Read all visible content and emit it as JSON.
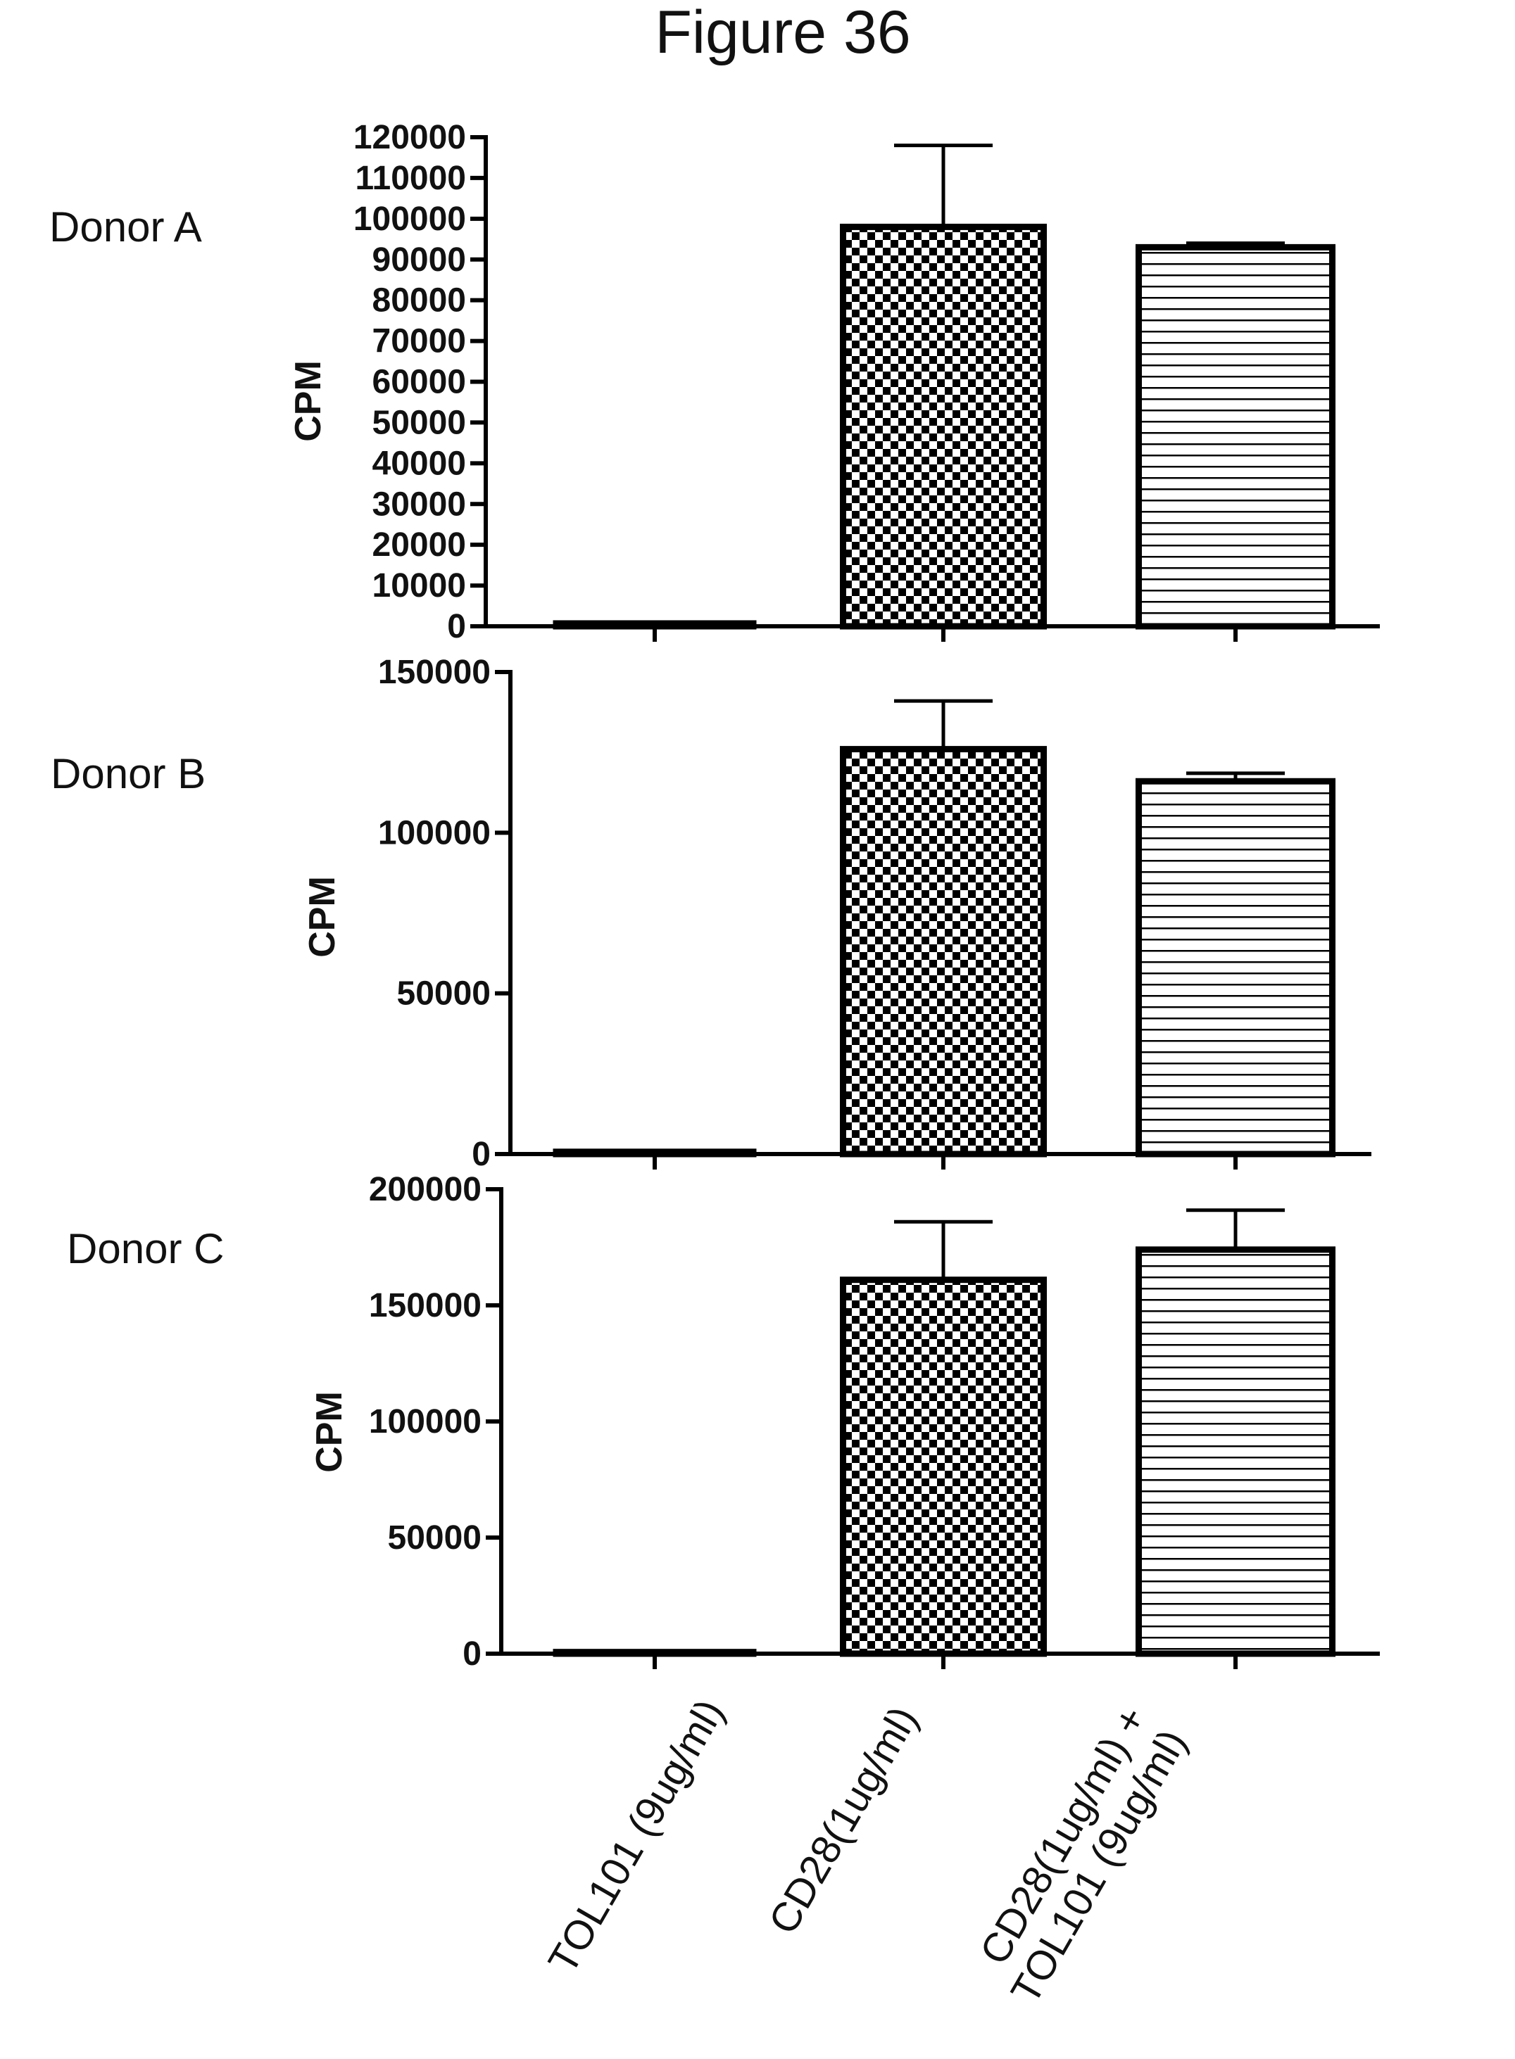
{
  "figure_title": "Figure 36",
  "chart_data": [
    {
      "type": "bar",
      "panel_label": "Donor A",
      "ylabel": "CPM",
      "ylim": [
        0,
        120000
      ],
      "yticks": [
        0,
        10000,
        20000,
        30000,
        40000,
        50000,
        60000,
        70000,
        80000,
        90000,
        100000,
        110000,
        120000
      ],
      "categories": [
        "TOL101 (9ug/ml)",
        "CD28(1ug/ml)",
        "CD28(1ug/ml) + TOL101 (9ug/ml)"
      ],
      "values": [
        700,
        98000,
        93000
      ],
      "error": [
        0,
        20000,
        1000
      ],
      "patterns": [
        "none",
        "checker",
        "hlines"
      ]
    },
    {
      "type": "bar",
      "panel_label": "Donor B",
      "ylabel": "CPM",
      "ylim": [
        0,
        150000
      ],
      "yticks": [
        0,
        50000,
        100000,
        150000
      ],
      "categories": [
        "TOL101 (9ug/ml)",
        "CD28(1ug/ml)",
        "CD28(1ug/ml) + TOL101 (9ug/ml)"
      ],
      "values": [
        700,
        126000,
        116000
      ],
      "error": [
        0,
        15000,
        2500
      ],
      "patterns": [
        "none",
        "checker",
        "hlines"
      ]
    },
    {
      "type": "bar",
      "panel_label": "Donor C",
      "ylabel": "CPM",
      "ylim": [
        0,
        200000
      ],
      "yticks": [
        0,
        50000,
        100000,
        150000,
        200000
      ],
      "categories": [
        "TOL101 (9ug/ml)",
        "CD28(1ug/ml)",
        "CD28(1ug/ml) + TOL101 (9ug/ml)"
      ],
      "values": [
        700,
        161000,
        174000
      ],
      "error": [
        0,
        25000,
        17000
      ],
      "patterns": [
        "none",
        "checker",
        "hlines"
      ]
    }
  ],
  "x_labels": [
    [
      "TOL101 (9ug/ml)"
    ],
    [
      "CD28(1ug/ml)"
    ],
    [
      "CD28(1ug/ml) +",
      "TOL101 (9ug/ml)"
    ]
  ]
}
